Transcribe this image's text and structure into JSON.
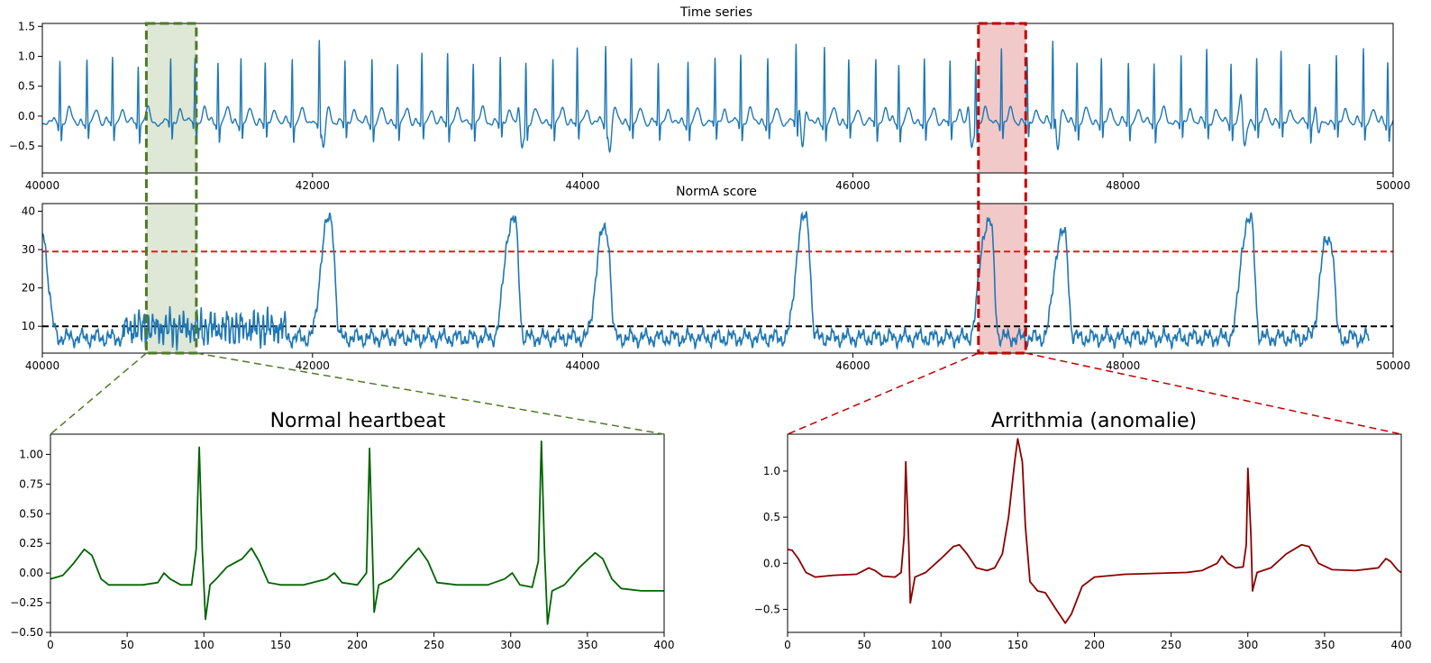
{
  "colors": {
    "series_blue": "#1f77b4",
    "normal_green": "#006400",
    "anomaly_red": "#8b0000",
    "threshold_red": "#e41a1c",
    "threshold_black": "#000000",
    "normal_box_fill": "#dfe7d6",
    "normal_box_stroke": "#4f7a28",
    "anomaly_box_fill": "#f2c9c9",
    "anomaly_box_stroke": "#c00000"
  },
  "chart_data": [
    {
      "id": "time-series",
      "type": "line",
      "title": "Time series",
      "xlim": [
        40000,
        50000
      ],
      "ylim": [
        -0.95,
        1.55
      ],
      "xticks": [
        40000,
        42000,
        44000,
        46000,
        48000,
        50000
      ],
      "yticks": [
        1.5,
        1.0,
        0.5,
        0.0,
        -0.5
      ],
      "yticklabels": [
        "1.5",
        "1.0",
        "0.5",
        "0.0",
        "−0.5"
      ],
      "beat_positions": [
        40130,
        40330,
        40520,
        40710,
        40950,
        41130,
        41300,
        41470,
        41650,
        41850,
        42050,
        42240,
        42440,
        42630,
        42810,
        43000,
        43190,
        43390,
        43580,
        43780,
        43960,
        44170,
        44360,
        44560,
        44780,
        44980,
        45170,
        45370,
        45580,
        45790,
        45970,
        46170,
        46340,
        46530,
        46720,
        46910,
        47100,
        47290,
        47480,
        47660,
        47840,
        48040,
        48230,
        48430,
        48620,
        48800,
        48990,
        49170,
        49380,
        49580,
        49780,
        49960
      ],
      "beat_heights": [
        1.1,
        1.05,
        1.1,
        1.0,
        1.1,
        1.15,
        1.05,
        1.1,
        1.0,
        1.1,
        1.25,
        1.05,
        1.1,
        1.0,
        1.15,
        1.2,
        1.05,
        1.1,
        1.05,
        1.1,
        1.25,
        1.15,
        1.1,
        1.0,
        1.05,
        1.1,
        1.2,
        1.1,
        1.35,
        1.3,
        1.05,
        1.1,
        1.0,
        1.1,
        1.05,
        1.15,
        1.3,
        1.1,
        1.35,
        1.05,
        1.1,
        1.0,
        1.05,
        1.15,
        1.25,
        1.05,
        1.1,
        1.2,
        1.05,
        1.15,
        1.25,
        1.05
      ],
      "anomaly_dips": [
        42080,
        43550,
        44200,
        45630,
        46880,
        47520,
        48900,
        49450
      ]
    },
    {
      "id": "norma-score",
      "type": "line",
      "title": "NormA score",
      "xlim": [
        40000,
        50000
      ],
      "ylim": [
        3,
        42
      ],
      "xticks": [
        40000,
        42000,
        44000,
        46000,
        48000,
        50000
      ],
      "yticks": [
        40,
        30,
        20,
        10
      ],
      "thresholds": [
        {
          "value": 29.5,
          "color": "#e41a1c"
        },
        {
          "value": 10,
          "color": "#000000"
        }
      ],
      "peaks": [
        {
          "x": 42130,
          "y": 37.5
        },
        {
          "x": 43490,
          "y": 37.5
        },
        {
          "x": 44170,
          "y": 35
        },
        {
          "x": 45650,
          "y": 38
        },
        {
          "x": 47010,
          "y": 37
        },
        {
          "x": 47560,
          "y": 34
        },
        {
          "x": 48940,
          "y": 37.5
        },
        {
          "x": 49530,
          "y": 33
        }
      ],
      "noisy_range": [
        40600,
        41800
      ],
      "x_end": 49820
    },
    {
      "id": "normal-heartbeat",
      "type": "line",
      "title": "Normal heartbeat",
      "xlim": [
        0,
        400
      ],
      "ylim": [
        -0.5,
        1.17
      ],
      "xticks": [
        0,
        50,
        100,
        150,
        200,
        250,
        300,
        350,
        400
      ],
      "yticks": [
        1.0,
        0.75,
        0.5,
        0.25,
        0.0,
        -0.25,
        -0.5
      ],
      "yticklabels": [
        "1.00",
        "0.75",
        "0.50",
        "0.25",
        "0.00",
        "−0.25",
        "−0.50"
      ],
      "points": [
        [
          0,
          -0.05
        ],
        [
          8,
          -0.02
        ],
        [
          15,
          0.08
        ],
        [
          22,
          0.2
        ],
        [
          27,
          0.15
        ],
        [
          33,
          -0.05
        ],
        [
          38,
          -0.1
        ],
        [
          50,
          -0.1
        ],
        [
          60,
          -0.1
        ],
        [
          70,
          -0.08
        ],
        [
          74,
          0.0
        ],
        [
          78,
          -0.05
        ],
        [
          85,
          -0.1
        ],
        [
          92,
          -0.1
        ],
        [
          95,
          0.2
        ],
        [
          97,
          1.06
        ],
        [
          99,
          0.2
        ],
        [
          101,
          -0.39
        ],
        [
          104,
          -0.1
        ],
        [
          108,
          -0.05
        ],
        [
          115,
          0.05
        ],
        [
          125,
          0.12
        ],
        [
          131,
          0.21
        ],
        [
          136,
          0.1
        ],
        [
          142,
          -0.08
        ],
        [
          150,
          -0.1
        ],
        [
          165,
          -0.1
        ],
        [
          180,
          -0.05
        ],
        [
          185,
          0.0
        ],
        [
          190,
          -0.08
        ],
        [
          200,
          -0.1
        ],
        [
          206,
          0.0
        ],
        [
          208,
          1.05
        ],
        [
          211,
          -0.33
        ],
        [
          214,
          -0.1
        ],
        [
          222,
          -0.05
        ],
        [
          232,
          0.1
        ],
        [
          240,
          0.21
        ],
        [
          246,
          0.1
        ],
        [
          252,
          -0.08
        ],
        [
          265,
          -0.1
        ],
        [
          285,
          -0.1
        ],
        [
          296,
          -0.05
        ],
        [
          301,
          0.0
        ],
        [
          306,
          -0.1
        ],
        [
          314,
          -0.12
        ],
        [
          318,
          0.1
        ],
        [
          320,
          1.11
        ],
        [
          322,
          0.2
        ],
        [
          324,
          -0.43
        ],
        [
          327,
          -0.15
        ],
        [
          335,
          -0.1
        ],
        [
          345,
          0.05
        ],
        [
          355,
          0.17
        ],
        [
          360,
          0.12
        ],
        [
          366,
          -0.05
        ],
        [
          372,
          -0.13
        ],
        [
          385,
          -0.15
        ],
        [
          400,
          -0.15
        ]
      ]
    },
    {
      "id": "arrithmia",
      "type": "line",
      "title": "Arrithmia (anomalie)",
      "xlim": [
        0,
        400
      ],
      "ylim": [
        -0.75,
        1.4
      ],
      "xticks": [
        0,
        50,
        100,
        150,
        200,
        250,
        300,
        350,
        400
      ],
      "yticks": [
        1.0,
        0.5,
        0.0,
        -0.5
      ],
      "yticklabels": [
        "1.0",
        "0.5",
        "0.0",
        "−0.5"
      ],
      "points": [
        [
          0,
          0.15
        ],
        [
          3,
          0.14
        ],
        [
          7,
          0.05
        ],
        [
          12,
          -0.1
        ],
        [
          18,
          -0.15
        ],
        [
          30,
          -0.13
        ],
        [
          45,
          -0.12
        ],
        [
          53,
          -0.05
        ],
        [
          57,
          -0.08
        ],
        [
          62,
          -0.14
        ],
        [
          70,
          -0.15
        ],
        [
          74,
          -0.1
        ],
        [
          76,
          0.3
        ],
        [
          77,
          1.1
        ],
        [
          79,
          0.2
        ],
        [
          80,
          -0.43
        ],
        [
          83,
          -0.15
        ],
        [
          90,
          -0.1
        ],
        [
          100,
          0.05
        ],
        [
          108,
          0.18
        ],
        [
          112,
          0.2
        ],
        [
          117,
          0.1
        ],
        [
          123,
          -0.05
        ],
        [
          130,
          -0.08
        ],
        [
          135,
          -0.05
        ],
        [
          140,
          0.1
        ],
        [
          144,
          0.5
        ],
        [
          148,
          1.1
        ],
        [
          150,
          1.35
        ],
        [
          153,
          1.1
        ],
        [
          155,
          0.4
        ],
        [
          158,
          -0.2
        ],
        [
          163,
          -0.3
        ],
        [
          168,
          -0.32
        ],
        [
          175,
          -0.5
        ],
        [
          181,
          -0.65
        ],
        [
          185,
          -0.55
        ],
        [
          192,
          -0.25
        ],
        [
          200,
          -0.15
        ],
        [
          220,
          -0.12
        ],
        [
          260,
          -0.1
        ],
        [
          270,
          -0.08
        ],
        [
          280,
          0.0
        ],
        [
          283,
          0.08
        ],
        [
          287,
          0.0
        ],
        [
          292,
          -0.05
        ],
        [
          297,
          -0.04
        ],
        [
          299,
          0.2
        ],
        [
          300,
          1.03
        ],
        [
          302,
          0.3
        ],
        [
          303,
          -0.3
        ],
        [
          306,
          -0.1
        ],
        [
          315,
          -0.05
        ],
        [
          325,
          0.1
        ],
        [
          335,
          0.2
        ],
        [
          340,
          0.18
        ],
        [
          346,
          0.0
        ],
        [
          355,
          -0.07
        ],
        [
          370,
          -0.08
        ],
        [
          385,
          -0.05
        ],
        [
          390,
          0.05
        ],
        [
          393,
          0.02
        ],
        [
          398,
          -0.08
        ],
        [
          400,
          -0.1
        ]
      ]
    }
  ],
  "highlights": [
    {
      "name": "normal",
      "x_start": 40770,
      "x_end": 41140
    },
    {
      "name": "anomaly",
      "x_start": 46930,
      "x_end": 47280
    }
  ]
}
